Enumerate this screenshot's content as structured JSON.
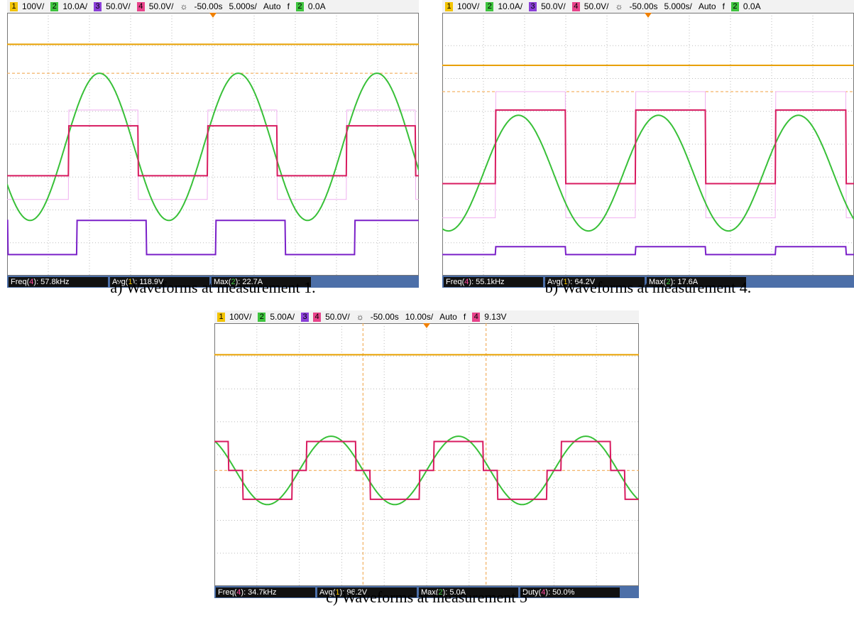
{
  "panels": [
    {
      "header": [
        {
          "text": "1",
          "badge": "#f2c300"
        },
        {
          "text": "100V/"
        },
        {
          "text": "2",
          "badge": "#3ec43e"
        },
        {
          "text": "10.0A/"
        },
        {
          "text": "3",
          "badge": "#8a3ed8"
        },
        {
          "text": "50.0V/"
        },
        {
          "text": "4",
          "badge": "#e8428a"
        },
        {
          "text": "50.0V/"
        },
        {
          "text": "☼"
        },
        {
          "text": "-50.00s"
        },
        {
          "text": "5.000s/"
        },
        {
          "text": "Auto"
        },
        {
          "text": "f"
        },
        {
          "text": "2",
          "badge": "#3ec43e"
        },
        {
          "text": "0.0A"
        }
      ],
      "measurements": [
        [
          {
            "text": "Freq("
          },
          {
            "text": "4",
            "color": "#ff4aa0"
          },
          {
            "text": "): 57.8kHz"
          }
        ],
        [
          {
            "text": "Avg("
          },
          {
            "text": "1",
            "color": "#f2c300"
          },
          {
            "text": "): 118.9V"
          }
        ],
        [
          {
            "text": "Max("
          },
          {
            "text": "2",
            "color": "#3ec43e"
          },
          {
            "text": "): 22.7A"
          }
        ]
      ],
      "caption": "a) Waveforms at measurement 1."
    },
    {
      "header": [
        {
          "text": "1",
          "badge": "#f2c300"
        },
        {
          "text": "100V/"
        },
        {
          "text": "2",
          "badge": "#3ec43e"
        },
        {
          "text": "10.0A/"
        },
        {
          "text": "3",
          "badge": "#8a3ed8"
        },
        {
          "text": "50.0V/"
        },
        {
          "text": "4",
          "badge": "#e8428a"
        },
        {
          "text": "50.0V/"
        },
        {
          "text": "☼"
        },
        {
          "text": "-50.00s"
        },
        {
          "text": "5.000s/"
        },
        {
          "text": "Auto"
        },
        {
          "text": "f"
        },
        {
          "text": "2",
          "badge": "#3ec43e"
        },
        {
          "text": "0.0A"
        }
      ],
      "measurements": [
        [
          {
            "text": "Freq("
          },
          {
            "text": "4",
            "color": "#ff4aa0"
          },
          {
            "text": "): 55.1kHz"
          }
        ],
        [
          {
            "text": "Avg("
          },
          {
            "text": "1",
            "color": "#f2c300"
          },
          {
            "text": "): 64.2V"
          }
        ],
        [
          {
            "text": "Max("
          },
          {
            "text": "2",
            "color": "#3ec43e"
          },
          {
            "text": "): 17.6A"
          }
        ]
      ],
      "caption": "b) Waveforms at measurement 4."
    },
    {
      "header": [
        {
          "text": "1",
          "badge": "#f2c300"
        },
        {
          "text": "100V/"
        },
        {
          "text": "2",
          "badge": "#3ec43e"
        },
        {
          "text": "5.00A/"
        },
        {
          "text": "3",
          "badge": "#8a3ed8"
        },
        {
          "text": "4",
          "badge": "#e8428a"
        },
        {
          "text": "50.0V/"
        },
        {
          "text": "☼"
        },
        {
          "text": "-50.00s"
        },
        {
          "text": "10.00s/"
        },
        {
          "text": "Auto"
        },
        {
          "text": "f"
        },
        {
          "text": "4",
          "badge": "#e8428a"
        },
        {
          "text": "9.13V"
        }
      ],
      "measurements": [
        [
          {
            "text": "Freq("
          },
          {
            "text": "4",
            "color": "#ff4aa0"
          },
          {
            "text": "): 34.7kHz"
          }
        ],
        [
          {
            "text": "Avg("
          },
          {
            "text": "1",
            "color": "#f2c300"
          },
          {
            "text": "): 96.2V"
          }
        ],
        [
          {
            "text": "Max("
          },
          {
            "text": "2",
            "color": "#3ec43e"
          },
          {
            "text": "): 5.0A"
          }
        ],
        [
          {
            "text": "Duty("
          },
          {
            "text": "4",
            "color": "#ff4aa0"
          },
          {
            "text": "): 50.0%"
          }
        ]
      ],
      "caption": "c) Waveforms at measurement 5"
    }
  ]
}
